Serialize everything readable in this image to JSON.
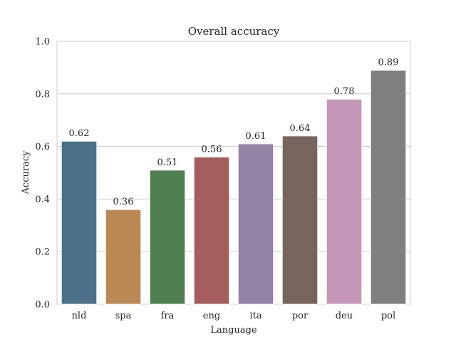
{
  "chart_data": {
    "type": "bar",
    "title": "Overall accuracy",
    "xlabel": "Language",
    "ylabel": "Accuracy",
    "ylim": [
      0,
      1.0
    ],
    "yticks": [
      "0.0",
      "0.2",
      "0.4",
      "0.6",
      "0.8",
      "1.0"
    ],
    "grid": true,
    "categories": [
      "nld",
      "spa",
      "fra",
      "eng",
      "ita",
      "por",
      "deu",
      "pol"
    ],
    "values": [
      0.62,
      0.36,
      0.51,
      0.56,
      0.61,
      0.64,
      0.78,
      0.89
    ],
    "value_labels": [
      "0.62",
      "0.36",
      "0.51",
      "0.56",
      "0.61",
      "0.64",
      "0.78",
      "0.89"
    ],
    "colors": [
      "#4c7088",
      "#b98853",
      "#4f7f51",
      "#a55c5c",
      "#9383a4",
      "#77645d",
      "#c596b7",
      "#7f7f7f"
    ]
  }
}
